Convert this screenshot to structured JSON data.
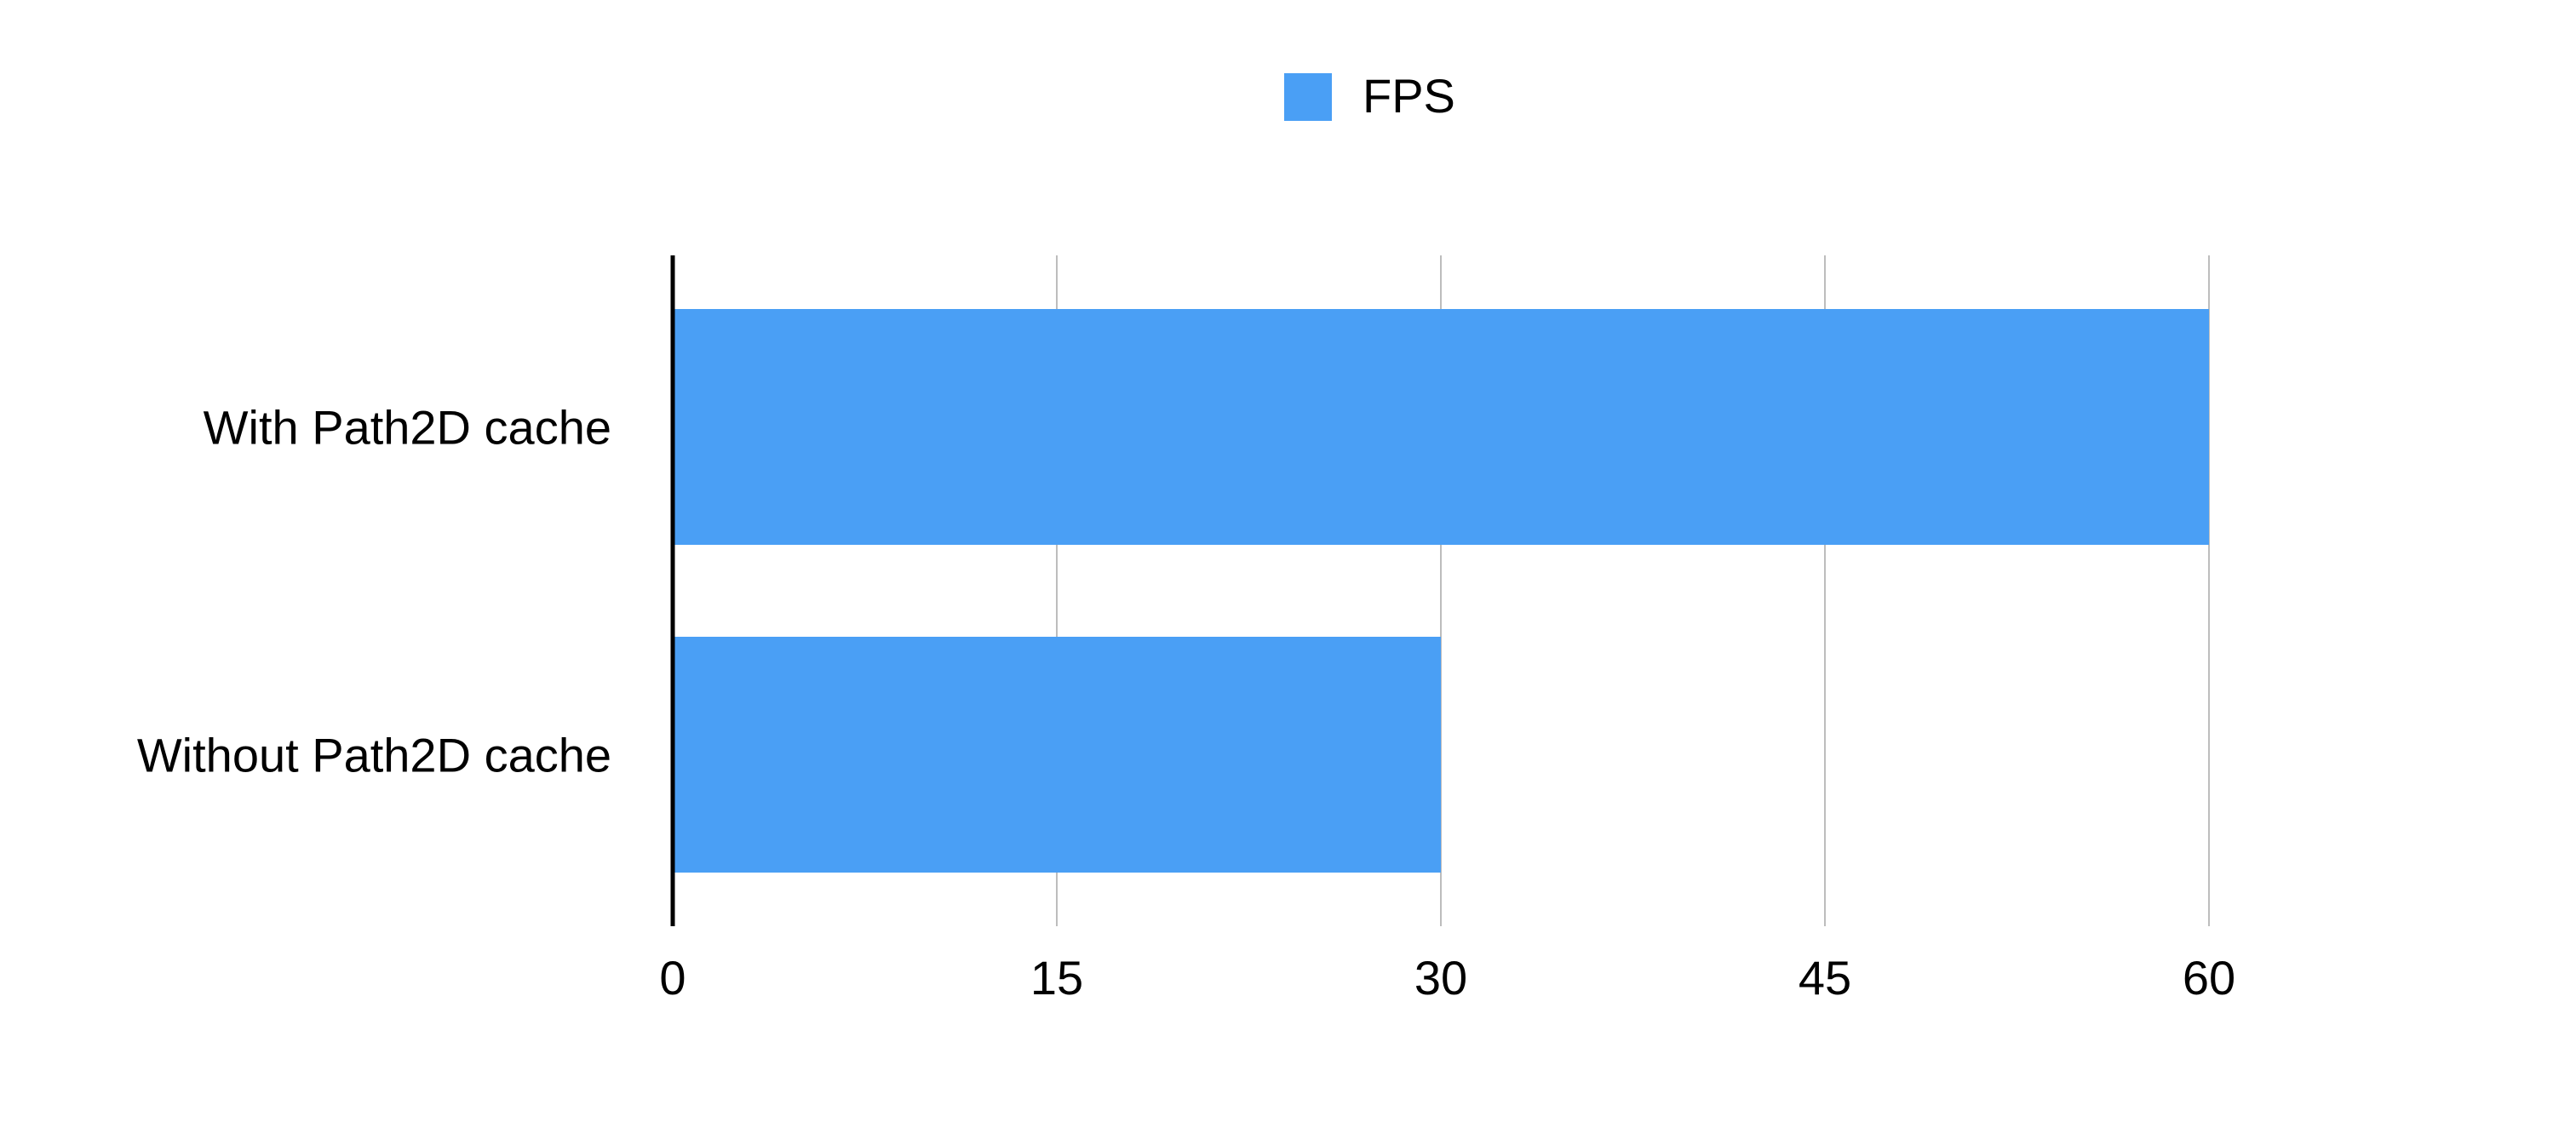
{
  "chart_data": {
    "type": "bar",
    "orientation": "horizontal",
    "categories": [
      "With Path2D cache",
      "Without Path2D cache"
    ],
    "series": [
      {
        "name": "FPS",
        "values": [
          60,
          30
        ],
        "color": "#4a9ff5"
      }
    ],
    "title": "",
    "xlabel": "",
    "ylabel": "",
    "xlim": [
      0,
      60
    ],
    "ticks": [
      0,
      15,
      30,
      45,
      60
    ],
    "grid": true,
    "legend_position": "top-center",
    "colors": {
      "bar": "#4a9ff5",
      "grid": "#bdbdbd",
      "axis": "#000000",
      "text": "#000000"
    }
  }
}
